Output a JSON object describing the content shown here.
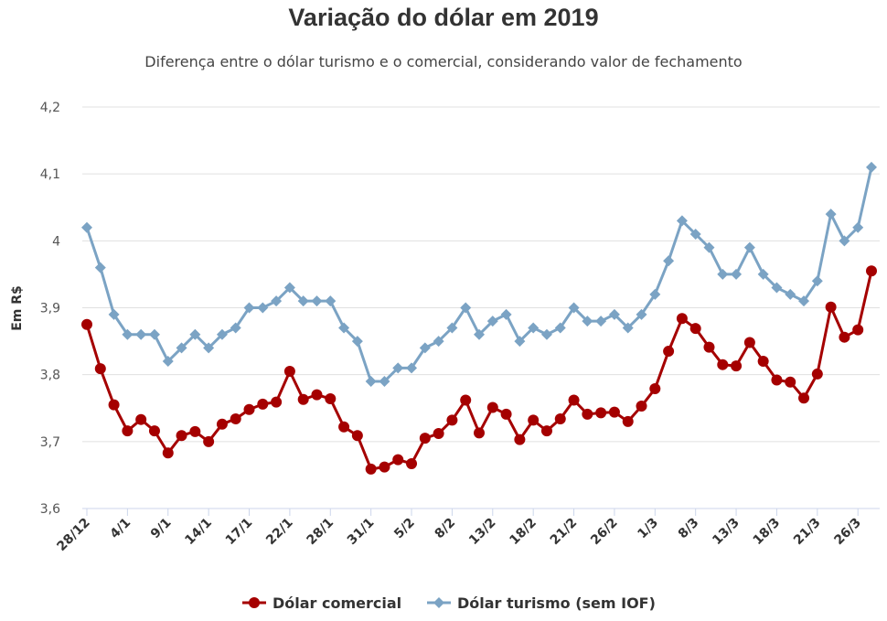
{
  "chart_data": {
    "type": "line",
    "title": "Variação do dólar em 2019",
    "subtitle": "Diferença entre o dólar turismo e o comercial, considerando valor de fechamento",
    "ylabel": "Em R$",
    "xlabel": "",
    "ylim": [
      3.6,
      4.2
    ],
    "y_ticks": [
      "3,6",
      "3,7",
      "3,8",
      "3,9",
      "4",
      "4,1",
      "4,2"
    ],
    "x_tick_labels": [
      "28/12",
      "4/1",
      "9/1",
      "14/1",
      "17/1",
      "22/1",
      "28/1",
      "31/1",
      "5/2",
      "8/2",
      "13/2",
      "18/2",
      "21/2",
      "26/2",
      "1/3",
      "8/3",
      "13/3",
      "18/3",
      "21/3",
      "26/3"
    ],
    "x_tick_every": 3,
    "grid": true,
    "legend": "bottom",
    "series": [
      {
        "name": "Dólar comercial",
        "color": "#a50000",
        "marker": "circle",
        "values": [
          3.875,
          3.809,
          3.755,
          3.716,
          3.733,
          3.716,
          3.683,
          3.709,
          3.715,
          3.7,
          3.726,
          3.734,
          3.748,
          3.756,
          3.759,
          3.805,
          3.763,
          3.77,
          3.764,
          3.722,
          3.709,
          3.659,
          3.662,
          3.673,
          3.667,
          3.705,
          3.712,
          3.732,
          3.762,
          3.713,
          3.751,
          3.741,
          3.703,
          3.732,
          3.716,
          3.734,
          3.762,
          3.741,
          3.743,
          3.744,
          3.73,
          3.753,
          3.779,
          3.835,
          3.884,
          3.869,
          3.841,
          3.815,
          3.813,
          3.848,
          3.82,
          3.792,
          3.789,
          3.765,
          3.801,
          3.901,
          3.856,
          3.867,
          3.955
        ]
      },
      {
        "name": "Dólar turismo (sem IOF)",
        "color": "#7ba3c4",
        "marker": "diamond",
        "values": [
          4.02,
          3.96,
          3.89,
          3.86,
          3.86,
          3.86,
          3.82,
          3.84,
          3.86,
          3.84,
          3.86,
          3.87,
          3.9,
          3.9,
          3.91,
          3.93,
          3.91,
          3.91,
          3.91,
          3.87,
          3.85,
          3.79,
          3.79,
          3.81,
          3.81,
          3.84,
          3.85,
          3.87,
          3.9,
          3.86,
          3.88,
          3.89,
          3.85,
          3.87,
          3.86,
          3.87,
          3.9,
          3.88,
          3.88,
          3.89,
          3.87,
          3.89,
          3.92,
          3.97,
          4.03,
          4.01,
          3.99,
          3.95,
          3.95,
          3.99,
          3.95,
          3.93,
          3.92,
          3.91,
          3.94,
          4.04,
          4.0,
          4.02,
          4.11
        ]
      }
    ]
  }
}
